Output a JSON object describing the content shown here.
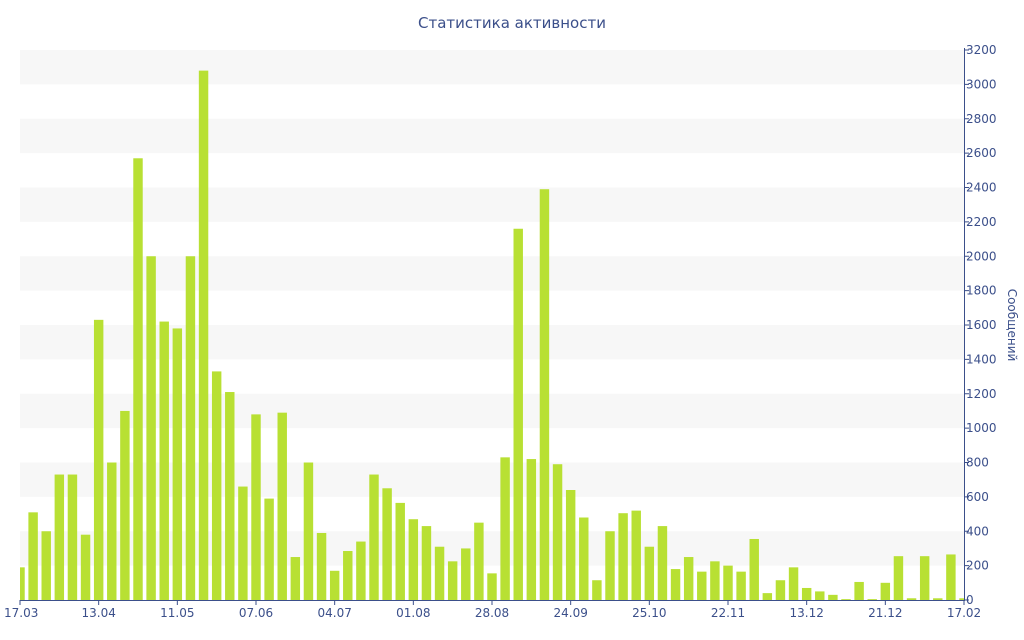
{
  "chart_data": {
    "type": "bar",
    "title": "Статистика активности",
    "ylabel": "Сообщений",
    "xlabel": "",
    "ylim": [
      0,
      3200
    ],
    "yticks": [
      0,
      200,
      400,
      600,
      800,
      1000,
      1200,
      1400,
      1600,
      1800,
      2000,
      2200,
      2400,
      2600,
      2800,
      3000,
      3200
    ],
    "y_axis_side": "right",
    "grid": "alternating horizontal bands",
    "legend": "none",
    "x_tick_labels": [
      {
        "label": "17.03",
        "index": 0
      },
      {
        "label": "13.04",
        "index": 6
      },
      {
        "label": "11.05",
        "index": 12
      },
      {
        "label": "07.06",
        "index": 18
      },
      {
        "label": "04.07",
        "index": 24
      },
      {
        "label": "01.08",
        "index": 30
      },
      {
        "label": "28.08",
        "index": 36
      },
      {
        "label": "24.09",
        "index": 42
      },
      {
        "label": "25.10",
        "index": 48
      },
      {
        "label": "22.11",
        "index": 54
      },
      {
        "label": "13.12",
        "index": 60
      },
      {
        "label": "21.12",
        "index": 66
      },
      {
        "label": "17.02",
        "index": 72
      }
    ],
    "series": [
      {
        "color": "#b8e033",
        "values": [
          190,
          510,
          400,
          730,
          730,
          380,
          1630,
          800,
          1100,
          2570,
          2000,
          1620,
          1580,
          2000,
          3080,
          1330,
          1210,
          660,
          1080,
          590,
          1090,
          250,
          800,
          390,
          170,
          285,
          340,
          730,
          650,
          565,
          470,
          430,
          310,
          225,
          300,
          450,
          155,
          830,
          2160,
          820,
          2390,
          790,
          640,
          480,
          115,
          400,
          505,
          520,
          310,
          430,
          180,
          250,
          165,
          225,
          200,
          165,
          355,
          40,
          115,
          190,
          70,
          50,
          30,
          5,
          105,
          5,
          100,
          255,
          10,
          255,
          10,
          265,
          10
        ]
      }
    ]
  }
}
